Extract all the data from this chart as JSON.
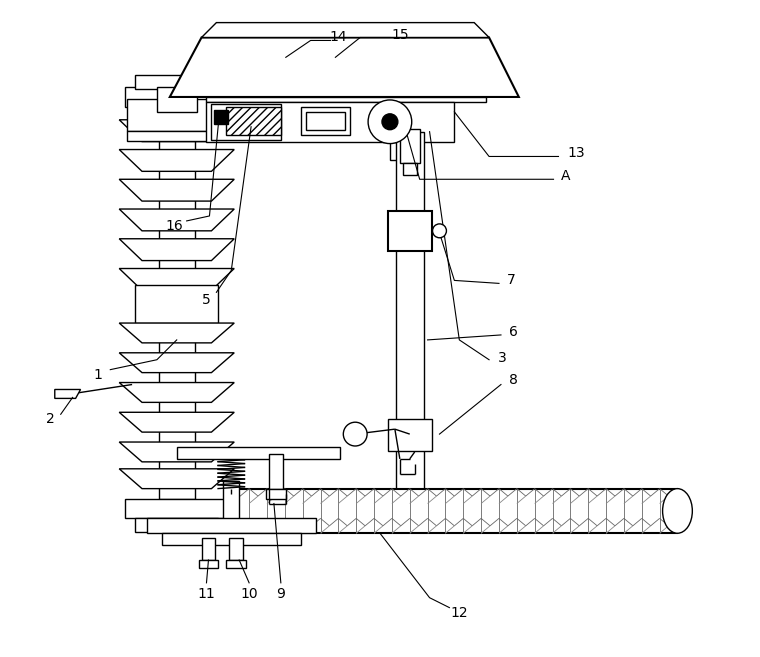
{
  "bg_color": "#ffffff",
  "line_color": "#000000",
  "lw": 1.0,
  "fig_width": 7.6,
  "fig_height": 6.57
}
